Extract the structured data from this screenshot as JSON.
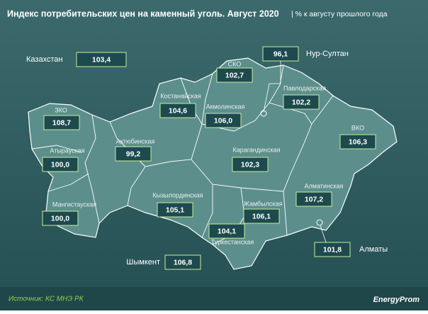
{
  "header": {
    "title": "Индекс потребительских цен на каменный уголь. Август 2020",
    "subtitle": "| % к августу прошлого года"
  },
  "regions": [
    {
      "name": "Казахстан",
      "value": 103.4,
      "value_label": "103,4"
    },
    {
      "name": "СКО",
      "value": 102.7,
      "value_label": "102,7"
    },
    {
      "name": "Нур-Султан",
      "value": 96.1,
      "value_label": "96,1"
    },
    {
      "name": "Павлодарская",
      "value": 102.2,
      "value_label": "102,2"
    },
    {
      "name": "Костанайская",
      "value": 104.6,
      "value_label": "104,6"
    },
    {
      "name": "Акмолинская",
      "value": 106.0,
      "value_label": "106,0"
    },
    {
      "name": "ЗКО",
      "value": 108.7,
      "value_label": "108,7"
    },
    {
      "name": "ВКО",
      "value": 106.3,
      "value_label": "106,3"
    },
    {
      "name": "Актюбинская",
      "value": 99.2,
      "value_label": "99,2"
    },
    {
      "name": "Атырауская",
      "value": 100.0,
      "value_label": "100,0"
    },
    {
      "name": "Карагандинская",
      "value": 102.3,
      "value_label": "102,3"
    },
    {
      "name": "Алматинская",
      "value": 107.2,
      "value_label": "107,2"
    },
    {
      "name": "Кызылординская",
      "value": 105.1,
      "value_label": "105,1"
    },
    {
      "name": "Мангистауская",
      "value": 100.0,
      "value_label": "100,0"
    },
    {
      "name": "Жамбылская",
      "value": 106.1,
      "value_label": "106,1"
    },
    {
      "name": "Туркестанская",
      "value": 104.1,
      "value_label": "104,1"
    },
    {
      "name": "Алматы",
      "value": 101.8,
      "value_label": "101,8"
    },
    {
      "name": "Шымкент",
      "value": 106.8,
      "value_label": "106,8"
    }
  ],
  "footer": {
    "source": "Источник: КС МНЭ РК",
    "logo": "EnergyProm"
  }
}
